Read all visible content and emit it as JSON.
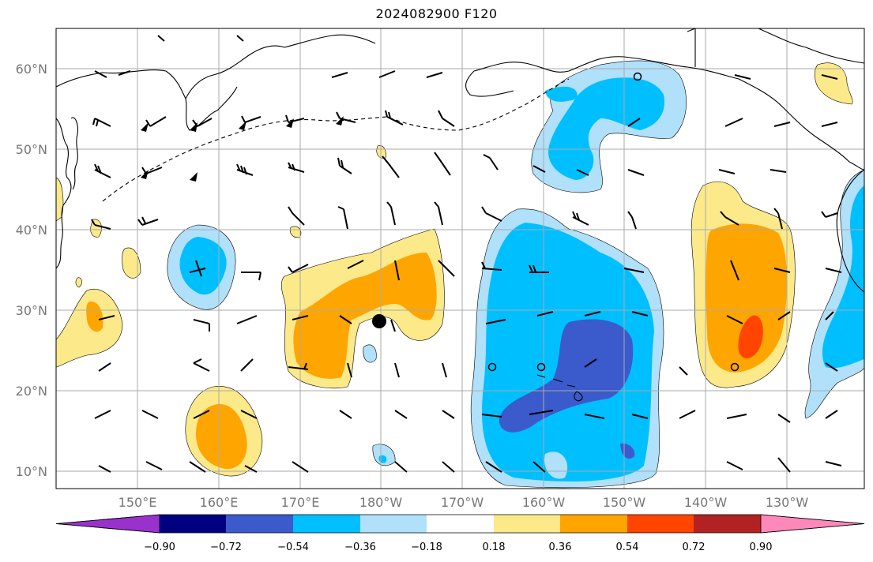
{
  "title": "2024082900 F120",
  "lat_labels": [
    "60°N",
    "50°N",
    "40°N",
    "30°N",
    "20°N",
    "10°N"
  ],
  "lon_labels": [
    "150°E",
    "160°E",
    "170°E",
    "180°W",
    "170°W",
    "160°W",
    "150°W",
    "140°W",
    "130°W"
  ],
  "colorbar": {
    "ticks": [
      "−0.90",
      "−0.72",
      "−0.54",
      "−0.36",
      "−0.18",
      "0.18",
      "0.36",
      "0.54",
      "0.72",
      "0.90"
    ],
    "colors": [
      "#9932cc",
      "#000080",
      "#3b5bcc",
      "#00bfff",
      "#b0e0fa",
      "#ffffff",
      "#fce98a",
      "#ffa500",
      "#ff4500",
      "#b22222",
      "#ff88bb"
    ]
  },
  "markers": {
    "low_dot": "filled-circle",
    "stations": [
      "open-circle",
      "open-circle",
      "open-circle",
      "open-circle"
    ]
  },
  "colors": {
    "neg_light": "#b0e0fa",
    "neg_mid": "#00bfff",
    "neg_dark": "#3b5bcc",
    "pos_light": "#fce98a",
    "pos_mid": "#ffa500",
    "pos_dark": "#ff4500",
    "grid": "#aaaaaa",
    "coast": "#000000"
  }
}
